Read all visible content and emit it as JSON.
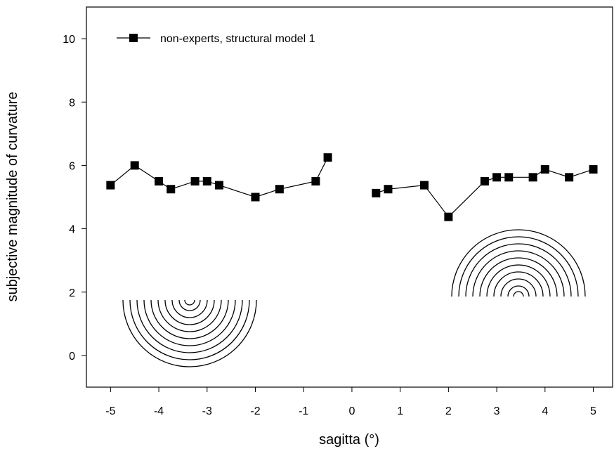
{
  "chart_data": {
    "type": "line",
    "x_label": "sagitta (°)",
    "y_label": "subjective magnitude of curvature",
    "x": [
      -5,
      -4.5,
      -4,
      -3.75,
      -3.25,
      -3,
      -2.75,
      -2,
      -1.5,
      -0.75,
      -0.5,
      0,
      0.5,
      0.75,
      1.5,
      2,
      2.75,
      3,
      3.25,
      3.75,
      4,
      4.5,
      5
    ],
    "series": [
      {
        "name": "non-experts, structural model 1",
        "color": "#000000",
        "values": [
          5.375,
          6.0,
          5.5,
          5.25,
          5.5,
          5.5,
          5.375,
          5.0,
          5.25,
          5.5,
          6.25,
          null,
          5.125,
          5.25,
          5.375,
          4.375,
          5.5,
          5.625,
          5.625,
          5.625,
          5.875,
          5.625,
          5.875
        ]
      }
    ],
    "xlim": [
      -5.5,
      5.4
    ],
    "xticks": [
      -5,
      -4,
      -3,
      -2,
      -1,
      0,
      1,
      2,
      3,
      4,
      5
    ],
    "ylim": [
      -1,
      11
    ],
    "yticks": [
      0,
      2,
      4,
      6,
      8,
      10
    ],
    "legend": "top-left"
  }
}
